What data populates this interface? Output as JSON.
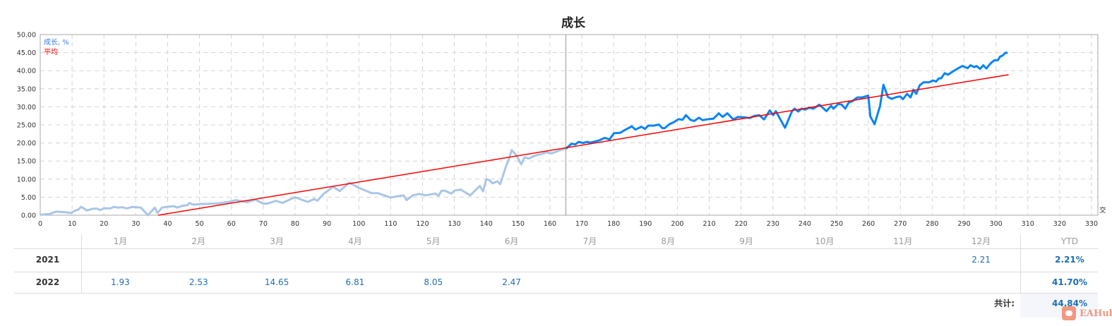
{
  "chart_data": {
    "type": "line",
    "title": "成长",
    "xlim": [
      0,
      332
    ],
    "ylim": [
      0,
      50
    ],
    "x_ticks": [
      0,
      10,
      20,
      30,
      40,
      50,
      60,
      70,
      80,
      90,
      100,
      110,
      120,
      130,
      140,
      150,
      160,
      170,
      180,
      190,
      200,
      210,
      220,
      230,
      240,
      250,
      260,
      270,
      280,
      290,
      300,
      310,
      320,
      330
    ],
    "y_ticks": [
      "0.00",
      "5.00",
      "10.00",
      "15.00",
      "20.00",
      "25.00",
      "30.00",
      "35.00",
      "40.00",
      "45.00",
      "50.00"
    ],
    "x_axis_label_partial": "交",
    "grid": true,
    "legend_position": "top-left",
    "current_marker_x": 165,
    "series": [
      {
        "name": "成长, %",
        "color": "#0a84f5",
        "past_color": "#a9c6e6",
        "x": [
          0,
          1.8,
          3,
          3.7,
          5,
          8,
          9.6,
          11,
          11.8,
          12.9,
          14.7,
          16.5,
          18,
          18.8,
          19.9,
          22,
          23.2,
          24.3,
          25.7,
          27.2,
          29,
          31.6,
          33.8,
          36,
          36.8,
          38.2,
          39.7,
          41.9,
          43,
          44.5,
          46.3,
          46.7,
          48.2,
          50,
          51.5,
          53.7,
          56,
          60,
          61.3,
          65,
          67.6,
          70,
          71.3,
          74,
          76,
          80,
          82,
          84,
          86,
          87,
          89,
          92,
          94,
          97,
          100,
          104,
          106,
          110,
          114,
          115,
          117,
          119,
          121,
          124,
          125,
          126,
          127,
          129,
          130,
          132,
          134,
          135,
          138,
          139,
          140,
          141,
          142,
          143.5,
          144.4,
          146,
          147,
          148,
          149.5,
          151,
          152,
          153.5,
          155,
          157.5,
          159,
          160.5,
          163.5,
          165,
          166.8,
          168,
          169,
          170.5,
          171.6,
          172.7,
          174.6,
          175.7,
          177.2,
          178.7,
          180.1,
          182,
          184,
          185.7,
          186.8,
          188.7,
          189.8,
          190.9,
          192.7,
          194.2,
          195.3,
          196,
          197.5,
          199,
          200.4,
          201.6,
          202.7,
          204.1,
          205.3,
          206.8,
          207.9,
          209.8,
          211.3,
          213,
          214.2,
          215.7,
          217.6,
          219,
          220.9,
          222.7,
          224.2,
          225.7,
          227.2,
          229,
          230.1,
          230.9,
          233.8,
          236,
          236.8,
          237.9,
          239,
          240.1,
          241.3,
          242.7,
          244.6,
          246.8,
          248.3,
          249,
          250.5,
          251.6,
          252.7,
          253.8,
          255,
          256.5,
          258,
          259.9,
          260.6,
          261.9,
          263.6,
          264.7,
          266.1,
          267.3,
          268.7,
          269.9,
          270.8,
          272.1,
          273.2,
          274.1,
          275,
          276.1,
          277.3,
          279.1,
          280.2,
          281.2,
          282.1,
          282.8,
          283.9,
          285,
          286.5,
          288,
          289.5,
          291.1,
          292,
          293.2,
          293.9,
          295,
          296,
          297,
          298.4,
          299.5,
          300.6,
          301.3,
          302.1,
          303,
          303.7
        ],
        "y": [
          0.1,
          0.3,
          0.3,
          0.6,
          1.0,
          0.8,
          0.6,
          1.3,
          1.5,
          2.3,
          1.3,
          1.8,
          1.8,
          1.4,
          1.9,
          1.9,
          2.3,
          2.1,
          2.2,
          1.9,
          2.3,
          2.1,
          0,
          2.1,
          0.6,
          2.1,
          2.3,
          2.5,
          2.1,
          2.6,
          2.8,
          3.4,
          2.9,
          3.1,
          3.1,
          3.2,
          3.3,
          3.8,
          4.2,
          3.6,
          4.3,
          3.2,
          3.2,
          4.0,
          3.4,
          5.0,
          4.3,
          3.7,
          4.5,
          4.0,
          6.0,
          7.9,
          6.7,
          9.0,
          7.6,
          6.1,
          6.1,
          4.9,
          5.5,
          4.2,
          5.5,
          5.9,
          5.5,
          6.0,
          5.4,
          6.8,
          6.8,
          6.0,
          6.8,
          7.1,
          6.0,
          5.5,
          8.1,
          6.6,
          10.0,
          9.7,
          8.8,
          9.4,
          8.6,
          13.0,
          15.3,
          18.0,
          16.5,
          14.1,
          16.0,
          15.7,
          16.4,
          17.0,
          17.4,
          17.1,
          18.1,
          18.4,
          19.8,
          19.6,
          20.3,
          20.0,
          20.3,
          20.1,
          20.5,
          20.8,
          21.4,
          21.0,
          22.7,
          22.8,
          23.8,
          24.6,
          23.7,
          24.5,
          23.9,
          24.8,
          24.8,
          25.1,
          24.1,
          24.1,
          25.2,
          25.8,
          26.6,
          26.4,
          27.7,
          26.4,
          26.1,
          27.0,
          26.3,
          26.6,
          26.7,
          28.2,
          27.2,
          28.2,
          26.5,
          27.2,
          27.1,
          26.9,
          27.5,
          27.7,
          26.5,
          29.0,
          27.7,
          28.8,
          24.2,
          28.8,
          29.5,
          28.7,
          29.5,
          29.2,
          29.8,
          29.5,
          30.6,
          28.8,
          30.3,
          29.5,
          30.8,
          30.6,
          29.5,
          31.2,
          31.6,
          32.6,
          32.6,
          33.1,
          27.3,
          25.2,
          30.2,
          36.1,
          32.7,
          32.2,
          32.7,
          32.9,
          32.1,
          33.6,
          32.6,
          34.7,
          33.6,
          36.0,
          36.8,
          36.8,
          37.3,
          37.0,
          37.9,
          37.9,
          39.3,
          38.9,
          39.8,
          40.6,
          41.3,
          40.7,
          41.5,
          41.0,
          41.3,
          40.5,
          41.5,
          40.6,
          42.1,
          42.9,
          42.9,
          43.9,
          44.2,
          45.0,
          44.9
        ]
      },
      {
        "name": "平均",
        "color": "#ff0000",
        "x": [
          37,
          304
        ],
        "y": [
          0,
          38.9
        ]
      }
    ]
  },
  "table": {
    "months": [
      "1月",
      "2月",
      "3月",
      "4月",
      "5月",
      "6月",
      "7月",
      "8月",
      "9月",
      "10月",
      "11月",
      "12月"
    ],
    "ytd_header": "YTD",
    "rows": [
      {
        "year": "2021",
        "values": [
          "",
          "",
          "",
          "",
          "",
          "",
          "",
          "",
          "",
          "",
          "",
          "2.21"
        ],
        "ytd": "2.21%"
      },
      {
        "year": "2022",
        "values": [
          "1.93",
          "2.53",
          "14.65",
          "6.81",
          "8.05",
          "2.47",
          "",
          "",
          "",
          "",
          "",
          ""
        ],
        "ytd": "41.70%"
      }
    ],
    "total_label": "共计:",
    "total_value": "44.84%"
  },
  "watermark": {
    "text": "EAHub"
  }
}
